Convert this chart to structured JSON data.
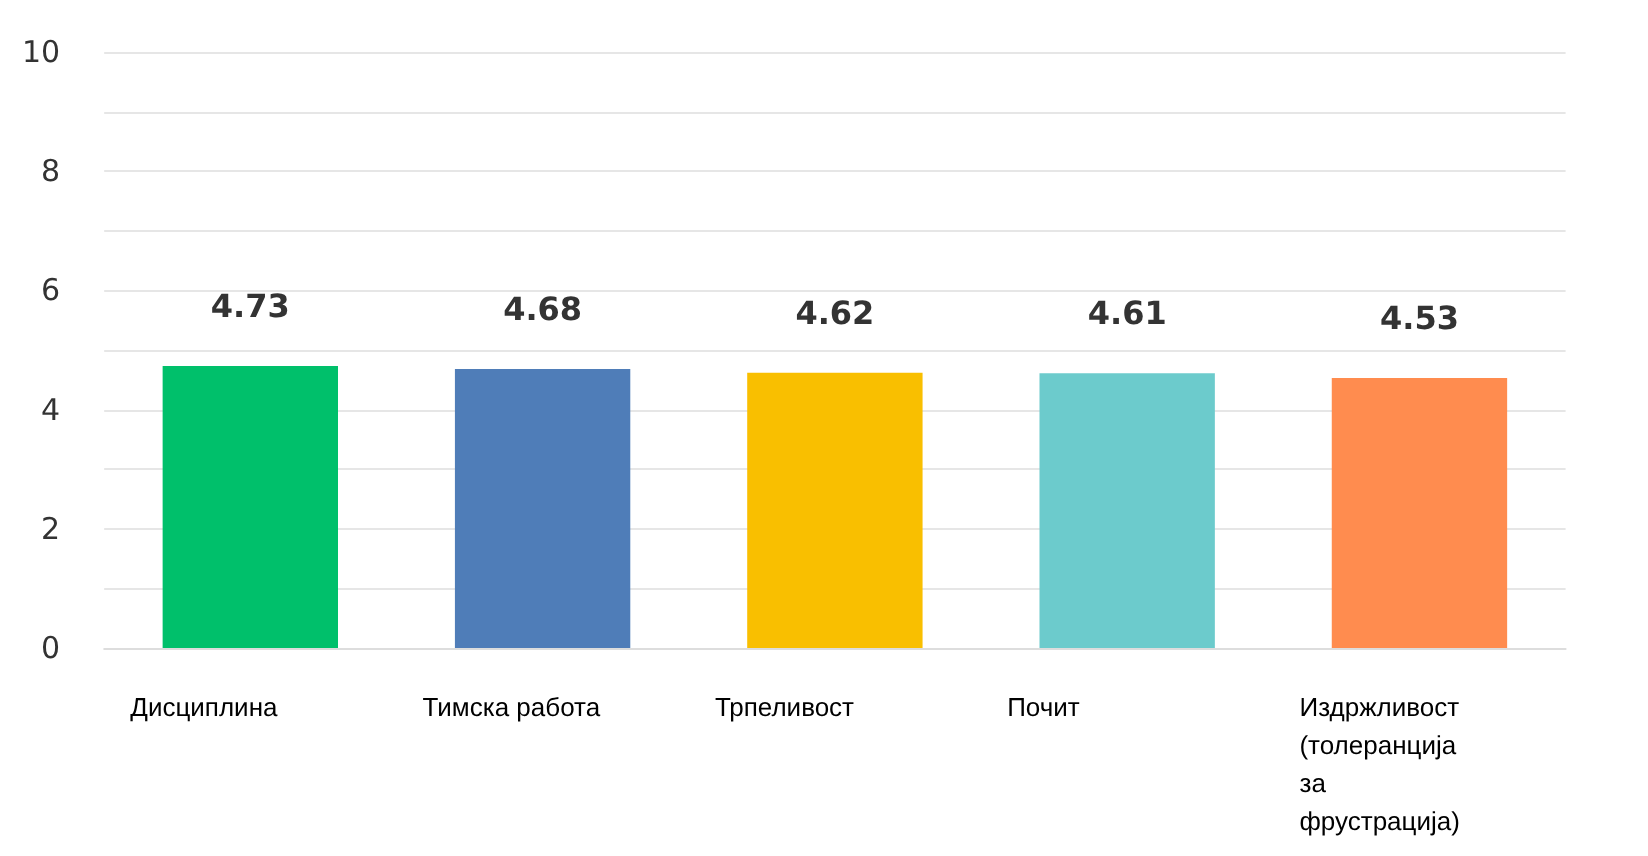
{
  "chart_data": {
    "type": "bar",
    "categories": [
      "Дисциплина",
      "Тимска работа",
      "Трпеливост",
      "Почит",
      "Издржливост (толеранција за фрустрација)"
    ],
    "values": [
      4.73,
      4.68,
      4.62,
      4.61,
      4.53
    ],
    "colors": [
      "#00c06b",
      "#4f7db8",
      "#f9bf00",
      "#6ccbcc",
      "#ff8c4f"
    ],
    "ylim": [
      0,
      10
    ],
    "yticks": [
      0,
      {
        "value": 1,
        "label": null
      },
      2,
      {
        "value": 3,
        "label": null
      },
      4,
      {
        "value": 5,
        "label": null
      },
      6,
      {
        "value": 7,
        "label": null
      },
      8,
      {
        "value": 9,
        "label": null
      },
      10
    ],
    "grid": "y",
    "data_labels": true
  }
}
